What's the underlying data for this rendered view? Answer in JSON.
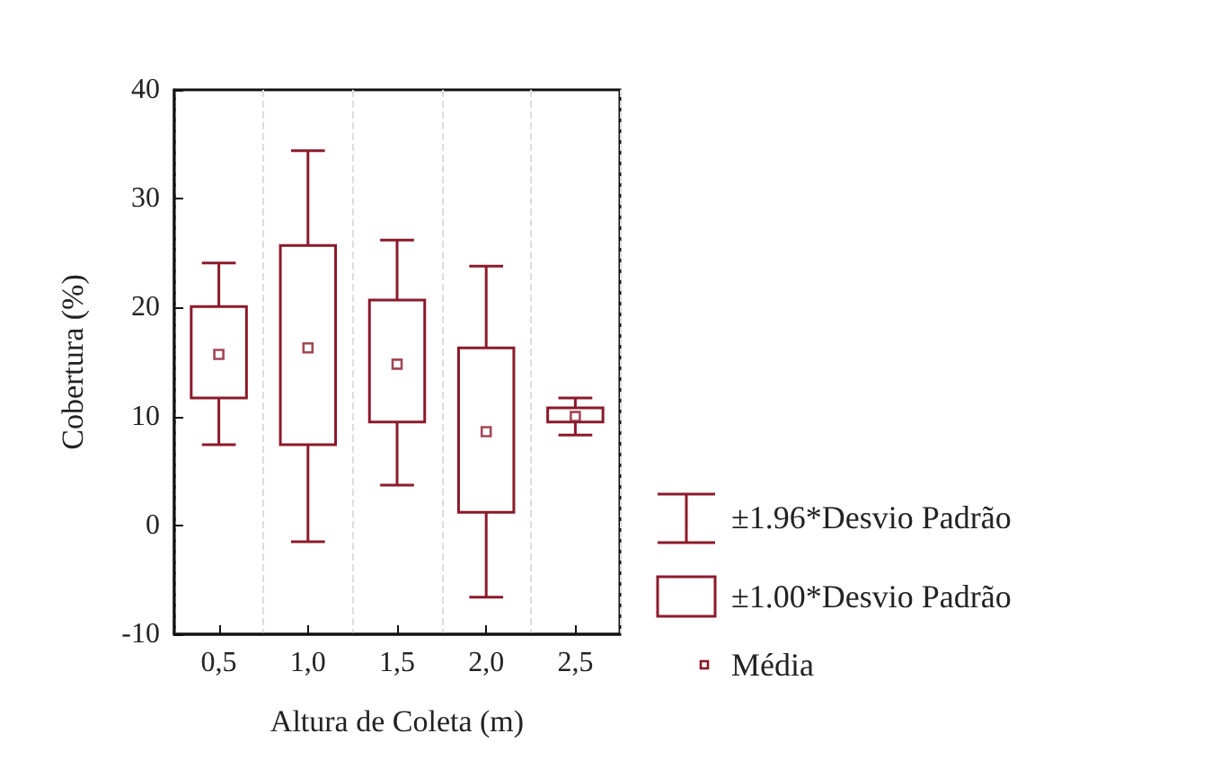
{
  "chart_data": {
    "type": "box",
    "xlabel": "Altura de Coleta (m)",
    "ylabel": "Cobertura (%)",
    "categories": [
      "0,5",
      "1,0",
      "1,5",
      "2,0",
      "2,5"
    ],
    "ylim": [
      -10,
      40
    ],
    "yticks": [
      -10,
      0,
      10,
      20,
      30,
      40
    ],
    "grid": "x",
    "marker": "square",
    "annotations": [
      "±1.96*Desvio Padrão",
      "±1.00*Desvio Padrão",
      "Média"
    ],
    "series": [
      {
        "color": "#8b1a2b",
        "boxes": [
          {
            "low": 7.4,
            "q1": 11.7,
            "q3": 20.1,
            "high": 24.1,
            "mean": 15.7
          },
          {
            "low": -1.5,
            "q1": 7.4,
            "q3": 25.7,
            "high": 34.4,
            "mean": 16.3
          },
          {
            "low": 3.7,
            "q1": 9.5,
            "q3": 20.7,
            "high": 26.2,
            "mean": 14.8
          },
          {
            "low": -6.6,
            "q1": 1.2,
            "q3": 16.3,
            "high": 23.8,
            "mean": 8.6
          },
          {
            "low": 8.3,
            "q1": 9.5,
            "q3": 10.8,
            "high": 11.7,
            "mean": 10.0
          }
        ]
      }
    ]
  }
}
